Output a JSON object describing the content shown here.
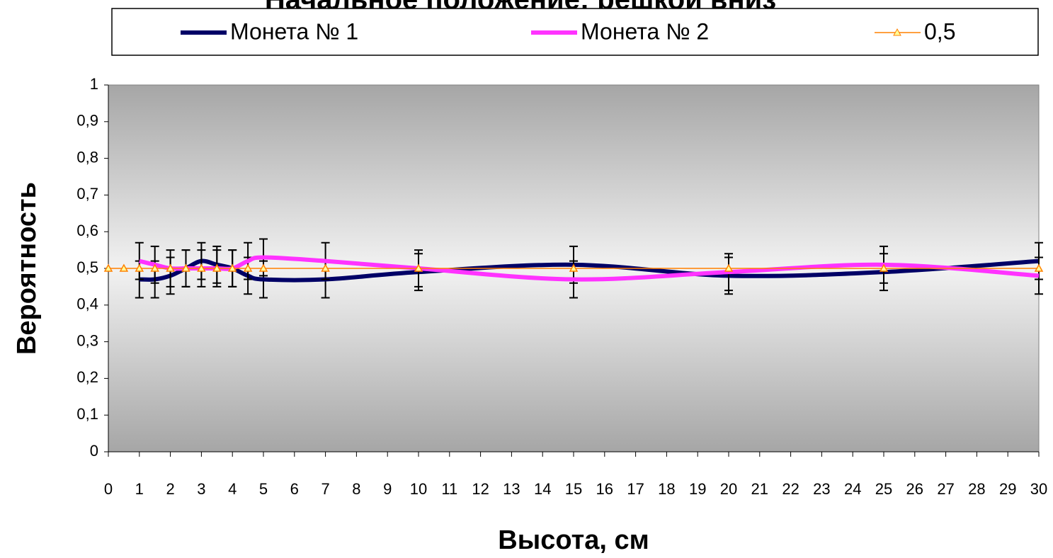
{
  "chart_data": {
    "type": "line",
    "title": "Начальное положение: решкой вниз",
    "x_label": "Высота, см",
    "y_label": "Вероятность",
    "xlim": [
      0,
      30
    ],
    "ylim": [
      0,
      1
    ],
    "xticks": [
      0,
      1,
      2,
      3,
      4,
      5,
      6,
      7,
      8,
      9,
      10,
      11,
      12,
      13,
      14,
      15,
      16,
      17,
      18,
      19,
      20,
      21,
      22,
      23,
      24,
      25,
      26,
      27,
      28,
      29,
      30
    ],
    "yticks": [
      0,
      {
        "value": 0.1,
        "label": "0,1"
      },
      {
        "value": 0.2,
        "label": "0,2"
      },
      {
        "value": 0.3,
        "label": "0,3"
      },
      {
        "value": 0.4,
        "label": "0,4"
      },
      {
        "value": 0.5,
        "label": "0,5"
      },
      {
        "value": 0.6,
        "label": "0,6"
      },
      {
        "value": 0.7,
        "label": "0,7"
      },
      {
        "value": 0.8,
        "label": "0,8"
      },
      {
        "value": 0.9,
        "label": "0,9"
      },
      1
    ],
    "series": [
      {
        "name": "Монета № 1",
        "color": "#000066",
        "x": [
          1,
          1.5,
          2,
          2.5,
          3,
          3.5,
          4,
          4.5,
          5,
          7,
          10,
          15,
          20,
          25,
          30
        ],
        "values": [
          0.47,
          0.47,
          0.48,
          0.5,
          0.52,
          0.51,
          0.5,
          0.48,
          0.47,
          0.47,
          0.49,
          0.51,
          0.48,
          0.49,
          0.52
        ],
        "errors": [
          0.05,
          0.05,
          0.05,
          0.05,
          0.05,
          0.05,
          0.05,
          0.05,
          0.05,
          0.05,
          0.05,
          0.05,
          0.05,
          0.05,
          0.05
        ]
      },
      {
        "name": "Монета № 2",
        "color": "#ff33ff",
        "x": [
          1,
          1.5,
          2,
          2.5,
          3,
          3.5,
          4,
          4.5,
          5,
          7,
          10,
          15,
          20,
          25,
          30
        ],
        "values": [
          0.52,
          0.51,
          0.5,
          0.5,
          0.5,
          0.5,
          0.5,
          0.52,
          0.53,
          0.52,
          0.5,
          0.47,
          0.49,
          0.51,
          0.48
        ],
        "errors": [
          0.05,
          0.05,
          0.05,
          0.05,
          0.05,
          0.05,
          0.05,
          0.05,
          0.05,
          0.05,
          0.05,
          0.05,
          0.05,
          0.05,
          0.05
        ]
      },
      {
        "name": "0,5",
        "color": "#ff8000",
        "marker": "triangle",
        "x": [
          0,
          0.5,
          1,
          1.5,
          2,
          2.5,
          3,
          3.5,
          4,
          4.5,
          5,
          7,
          10,
          15,
          20,
          25,
          30
        ],
        "values": [
          0.5,
          0.5,
          0.5,
          0.5,
          0.5,
          0.5,
          0.5,
          0.5,
          0.5,
          0.5,
          0.5,
          0.5,
          0.5,
          0.5,
          0.5,
          0.5,
          0.5
        ]
      }
    ]
  }
}
